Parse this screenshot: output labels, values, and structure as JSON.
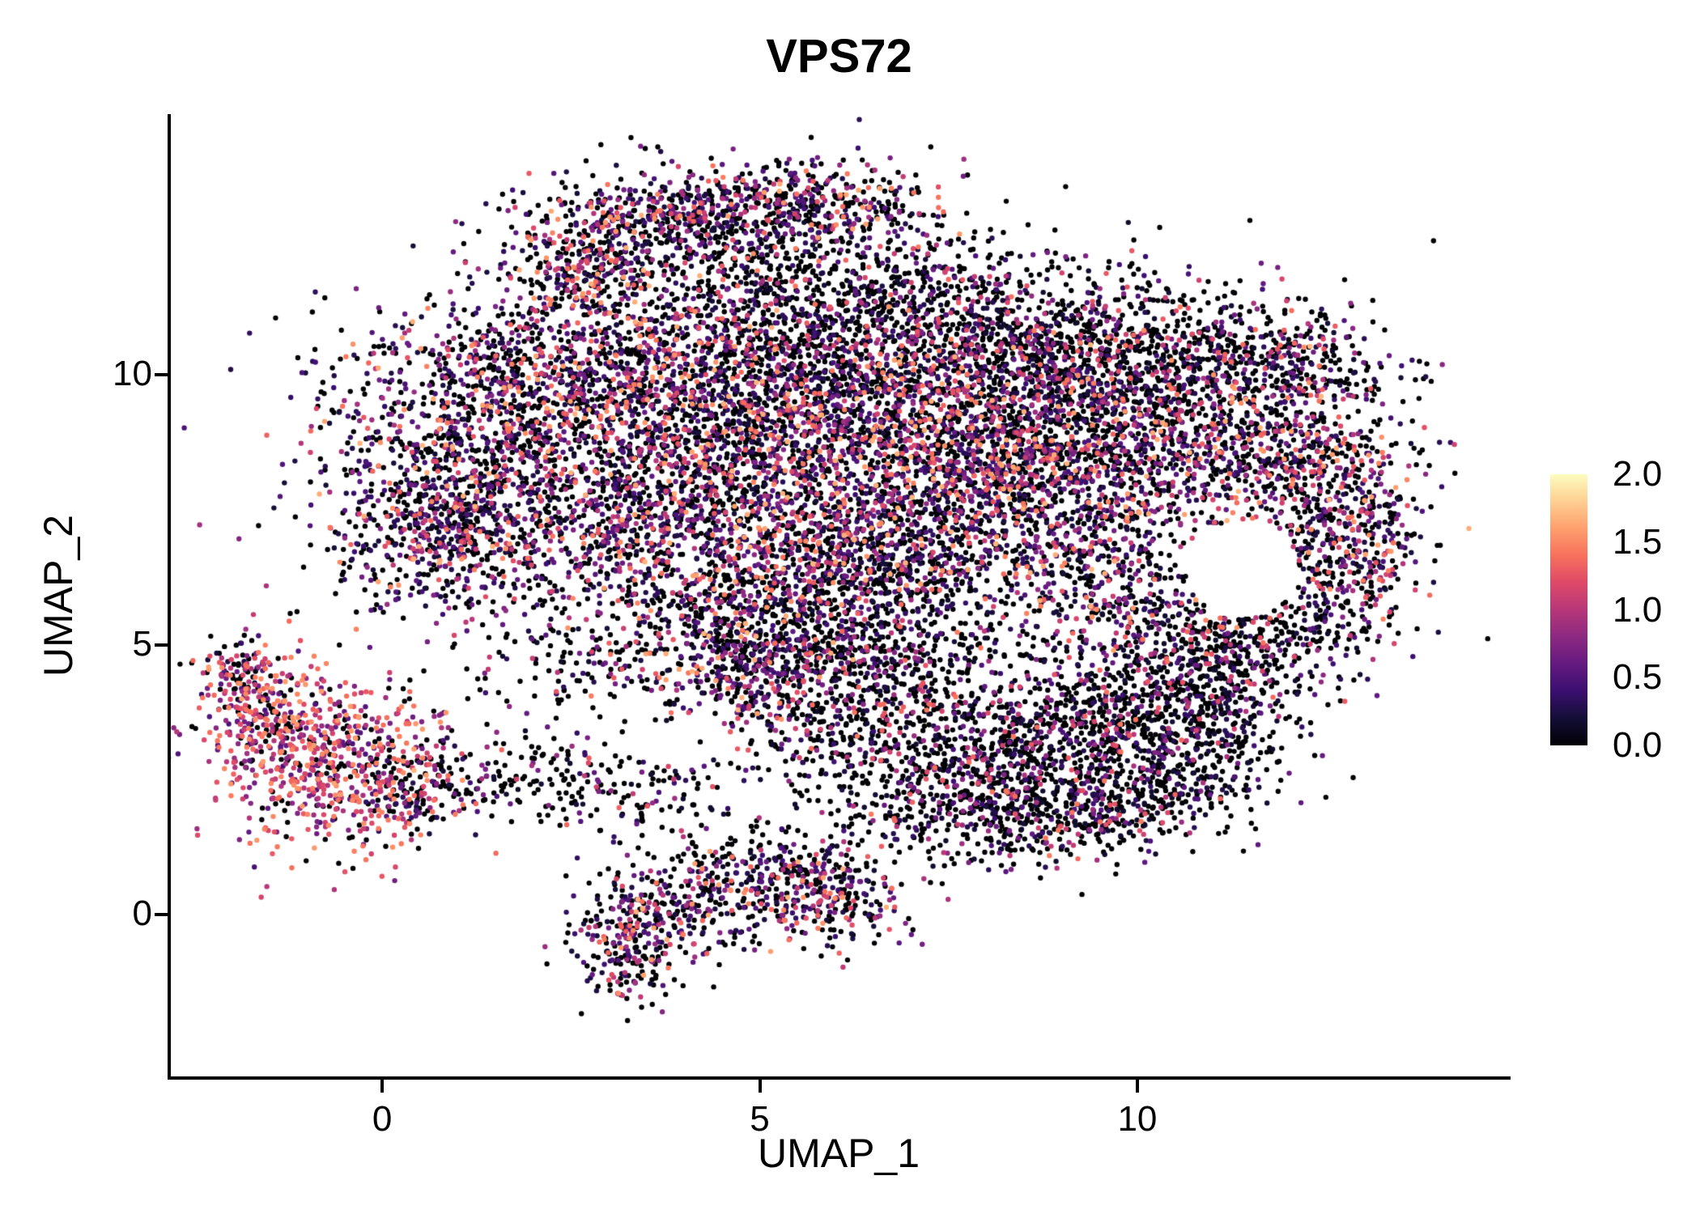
{
  "chart_data": {
    "type": "scatter",
    "title": "VPS72",
    "xlabel": "UMAP_1",
    "ylabel": "UMAP_2",
    "xlim": [
      -2.8,
      14.9
    ],
    "ylim": [
      -3.0,
      14.8
    ],
    "x_ticks": [
      {
        "v": 0,
        "label": "0"
      },
      {
        "v": 5,
        "label": "5"
      },
      {
        "v": 10,
        "label": "10"
      }
    ],
    "y_ticks": [
      {
        "v": 0,
        "label": "0"
      },
      {
        "v": 5,
        "label": "5"
      },
      {
        "v": 10,
        "label": "10"
      }
    ],
    "point_radius_px": 3.2,
    "seed": 7,
    "grid": false,
    "legend_position": "right",
    "colors": {
      "background": "#ffffff",
      "axis": "#000000",
      "text": "#000000"
    },
    "colormap": {
      "name": "magma",
      "vmin": 0,
      "vmax": 2,
      "stops": [
        {
          "t": 0.0,
          "c": "#000004"
        },
        {
          "t": 0.1,
          "c": "#140e36"
        },
        {
          "t": 0.2,
          "c": "#3b0f70"
        },
        {
          "t": 0.3,
          "c": "#641a80"
        },
        {
          "t": 0.4,
          "c": "#8c2981"
        },
        {
          "t": 0.5,
          "c": "#b73779"
        },
        {
          "t": 0.6,
          "c": "#de4968"
        },
        {
          "t": 0.7,
          "c": "#f7705c"
        },
        {
          "t": 0.8,
          "c": "#fe9f6d"
        },
        {
          "t": 0.9,
          "c": "#fecf92"
        },
        {
          "t": 1.0,
          "c": "#fcfdbf"
        }
      ]
    },
    "legend": {
      "ticks": [
        {
          "v": 2.0,
          "label": "2.0"
        },
        {
          "v": 1.5,
          "label": "1.5"
        },
        {
          "v": 1.0,
          "label": "1.0"
        },
        {
          "v": 0.5,
          "label": "0.5"
        },
        {
          "v": 0.0,
          "label": "0.0"
        }
      ]
    },
    "expr_profiles": {
      "low": {
        "p0": 0.62,
        "base": 0.15,
        "span": 1.3,
        "pow": 2.2
      },
      "mid": {
        "p0": 0.44,
        "base": 0.2,
        "span": 1.5,
        "pow": 1.8
      },
      "high": {
        "p0": 0.18,
        "base": 0.45,
        "span": 1.15,
        "pow": 0.9
      }
    },
    "holes": [
      {
        "x": 11.4,
        "y": 6.4,
        "rx": 0.75,
        "ry": 0.9
      }
    ],
    "clusters": [
      [
        2.7,
        12.2,
        0.5,
        0.5,
        280,
        "mid"
      ],
      [
        4.0,
        13.0,
        0.8,
        0.4,
        380,
        "mid"
      ],
      [
        5.6,
        13.2,
        0.9,
        0.35,
        380,
        "mid"
      ],
      [
        4.8,
        12.0,
        1.3,
        0.6,
        280,
        "low"
      ],
      [
        7.0,
        11.6,
        1.0,
        0.6,
        240,
        "low"
      ],
      [
        1.3,
        8.8,
        1.1,
        1.3,
        1100,
        "mid"
      ],
      [
        0.8,
        7.2,
        0.7,
        0.8,
        450,
        "mid"
      ],
      [
        2.8,
        10.3,
        1.0,
        0.8,
        600,
        "mid"
      ],
      [
        4.3,
        9.3,
        1.3,
        1.2,
        1000,
        "mid"
      ],
      [
        3.6,
        7.2,
        1.0,
        1.0,
        650,
        "mid"
      ],
      [
        5.6,
        10.8,
        1.0,
        0.8,
        500,
        "low"
      ],
      [
        6.0,
        8.6,
        1.2,
        1.0,
        800,
        "mid"
      ],
      [
        5.2,
        6.2,
        1.2,
        0.8,
        500,
        "mid"
      ],
      [
        7.6,
        9.8,
        1.2,
        1.0,
        850,
        "mid"
      ],
      [
        8.0,
        7.8,
        1.2,
        1.0,
        900,
        "mid"
      ],
      [
        9.5,
        8.8,
        1.0,
        0.9,
        650,
        "mid"
      ],
      [
        9.0,
        10.6,
        1.2,
        0.7,
        550,
        "low"
      ],
      [
        10.8,
        10.2,
        1.0,
        0.7,
        450,
        "low"
      ],
      [
        12.2,
        10.3,
        0.6,
        0.5,
        120,
        "low"
      ],
      [
        11.5,
        9.0,
        0.9,
        0.8,
        450,
        "mid"
      ],
      [
        12.4,
        7.8,
        0.7,
        1.0,
        450,
        "mid"
      ],
      [
        12.9,
        6.8,
        0.4,
        0.6,
        200,
        "mid"
      ],
      [
        9.6,
        6.3,
        0.8,
        0.7,
        350,
        "mid"
      ],
      [
        11.9,
        5.5,
        0.8,
        0.5,
        240,
        "low"
      ],
      [
        10.9,
        4.9,
        0.9,
        0.5,
        260,
        "low"
      ],
      [
        6.7,
        6.6,
        0.8,
        0.7,
        400,
        "mid"
      ],
      [
        6.3,
        5.3,
        1.2,
        0.6,
        350,
        "low"
      ],
      [
        4.6,
        5.0,
        0.8,
        0.5,
        250,
        "mid"
      ],
      [
        6.5,
        8.5,
        3.2,
        2.2,
        500,
        "low"
      ],
      [
        8.3,
        3.0,
        1.1,
        0.9,
        700,
        "low"
      ],
      [
        9.9,
        3.4,
        1.0,
        0.8,
        550,
        "low"
      ],
      [
        11.0,
        3.9,
        0.7,
        0.7,
        300,
        "low"
      ],
      [
        8.9,
        1.8,
        0.9,
        0.5,
        280,
        "low"
      ],
      [
        7.3,
        2.3,
        0.7,
        0.6,
        250,
        "low"
      ],
      [
        10.4,
        2.4,
        0.6,
        0.5,
        180,
        "low"
      ],
      [
        5.0,
        4.3,
        0.7,
        0.5,
        220,
        "mid"
      ],
      [
        5.9,
        3.4,
        0.7,
        0.5,
        200,
        "low"
      ],
      [
        6.6,
        4.4,
        0.6,
        0.4,
        150,
        "low"
      ],
      [
        1.8,
        2.6,
        1.0,
        0.45,
        130,
        "low"
      ],
      [
        3.2,
        2.2,
        0.9,
        0.4,
        120,
        "low"
      ],
      [
        2.6,
        4.6,
        0.7,
        0.5,
        120,
        "low"
      ],
      [
        -0.8,
        2.9,
        0.85,
        0.85,
        650,
        "high"
      ],
      [
        -1.6,
        3.9,
        0.4,
        0.5,
        150,
        "high"
      ],
      [
        -1.9,
        4.5,
        0.2,
        0.35,
        70,
        "mid"
      ],
      [
        0.3,
        2.2,
        0.5,
        0.5,
        160,
        "mid"
      ],
      [
        3.3,
        -0.5,
        0.4,
        0.55,
        260,
        "mid"
      ],
      [
        4.3,
        0.2,
        0.7,
        0.45,
        220,
        "mid"
      ],
      [
        5.3,
        0.5,
        0.6,
        0.4,
        160,
        "mid"
      ],
      [
        6.1,
        0.3,
        0.45,
        0.5,
        150,
        "mid"
      ],
      [
        4.9,
        1.1,
        0.8,
        0.35,
        110,
        "low"
      ]
    ]
  }
}
